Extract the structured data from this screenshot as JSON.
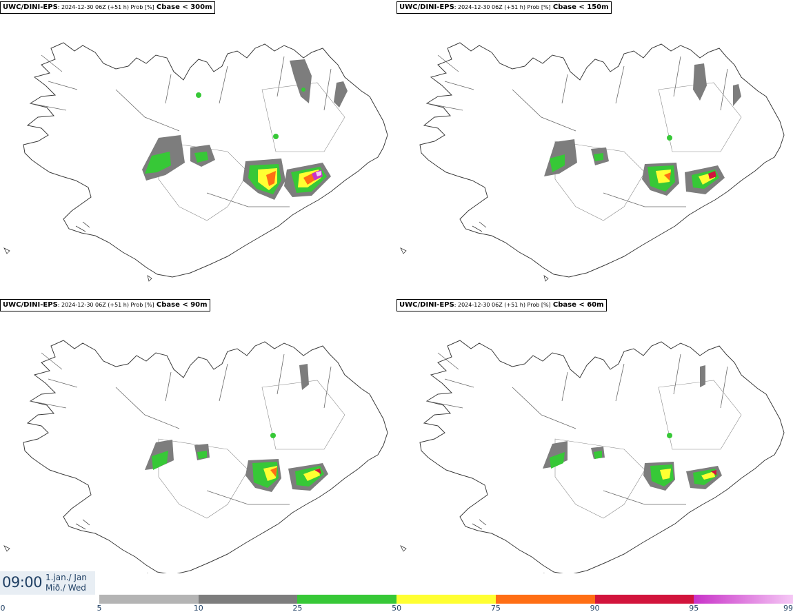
{
  "panels": [
    {
      "model": "UWC/DINI-EPS",
      "meta": ": 2024-12-30 06Z (+51 h) Prob [%]",
      "threshold": "Cbase < 300m"
    },
    {
      "model": "UWC/DINI-EPS",
      "meta": ": 2024-12-30 06Z (+51 h) Prob [%]",
      "threshold": "Cbase < 150m"
    },
    {
      "model": "UWC/DINI-EPS",
      "meta": ": 2024-12-30 06Z (+51 h) Prob [%]",
      "threshold": "Cbase < 90m"
    },
    {
      "model": "UWC/DINI-EPS",
      "meta": ": 2024-12-30 06Z (+51 h) Prob [%]",
      "threshold": "Cbase < 60m"
    }
  ],
  "valid_time": {
    "time": "09:00",
    "date_line1": "1.jan./ Jan",
    "date_line2": "Mið./ Wed"
  },
  "colorbar": {
    "ticks": [
      "0",
      "5",
      "10",
      "25",
      "50",
      "75",
      "90",
      "95",
      "99"
    ],
    "bins": [
      {
        "from": 5,
        "to": 10,
        "color": "#b4b4b4"
      },
      {
        "from": 10,
        "to": 25,
        "color": "#7d7d7d"
      },
      {
        "from": 25,
        "to": 50,
        "color": "#37c837"
      },
      {
        "from": 50,
        "to": 75,
        "color": "#ffff32"
      },
      {
        "from": 75,
        "to": 90,
        "color": "#ff6e14"
      },
      {
        "from": 90,
        "to": 95,
        "color": "#d2143c"
      },
      {
        "from": 95,
        "to": 99,
        "color": "#c832c8",
        "to_color": "#f5c8f5"
      }
    ]
  }
}
